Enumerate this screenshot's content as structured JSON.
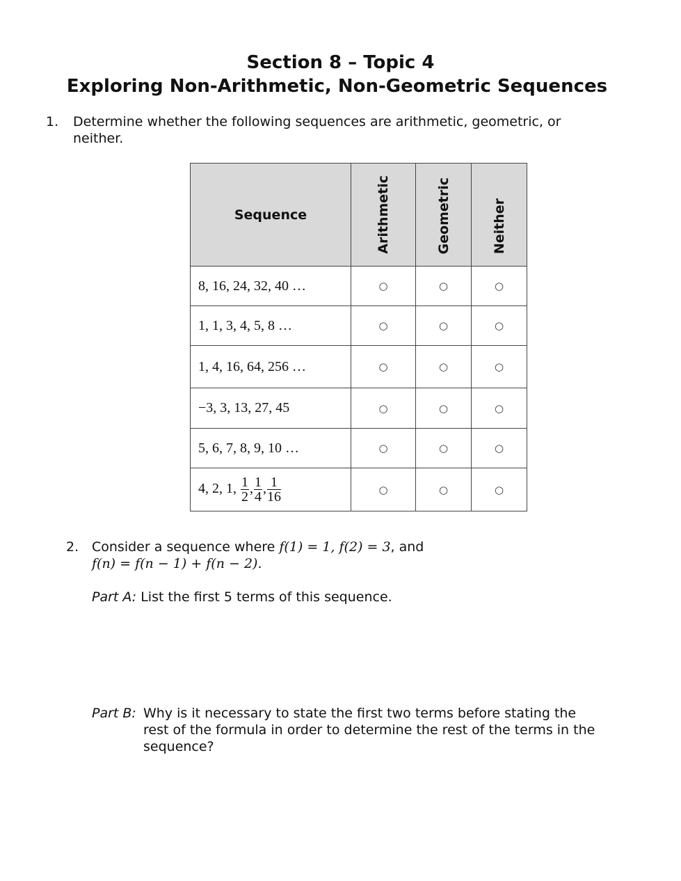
{
  "title": {
    "line1": "Section 8 – Topic 4",
    "line2": "Exploring Non-Arithmetic, Non-Geometric Sequences"
  },
  "q1": {
    "number": "1.",
    "text_line1": "Determine whether the following sequences are arithmetic, geometric, or",
    "text_line2": "neither."
  },
  "table": {
    "headers": [
      "Sequence",
      "Arithmetic",
      "Geometric",
      "Neither"
    ],
    "radio_symbol": "○",
    "rows": [
      {
        "sequence": "8, 16, 24, 32, 40 …"
      },
      {
        "sequence": "1, 1, 3, 4, 5, 8 …"
      },
      {
        "sequence": "1, 4, 16, 64, 256 …"
      },
      {
        "sequence": "−3, 3, 13, 27, 45"
      },
      {
        "sequence": "5, 6, 7, 8, 9, 10 …"
      },
      {
        "sequence_prefix": "4, 2, 1, ",
        "fractions": [
          {
            "num": "1",
            "den": "2"
          },
          {
            "num": "1",
            "den": "4"
          },
          {
            "num": "1",
            "den": "16"
          }
        ],
        "separator": ","
      }
    ]
  },
  "q2": {
    "number": "2.",
    "text_a": "Consider a sequence where ",
    "math_a": "f(1) = 1, f(2) = 3",
    "text_b": ", and",
    "math_b": "f(n) = f(n − 1) + f(n − 2).",
    "part_a_label": "Part A:",
    "part_a_text": "List the first 5 terms of this sequence.",
    "part_b_label": "Part B:",
    "part_b_line1": "Why is it necessary to state the first two terms before stating the",
    "part_b_line2": "rest of the formula in order to determine the rest of the terms in the",
    "part_b_line3": "sequence?"
  }
}
